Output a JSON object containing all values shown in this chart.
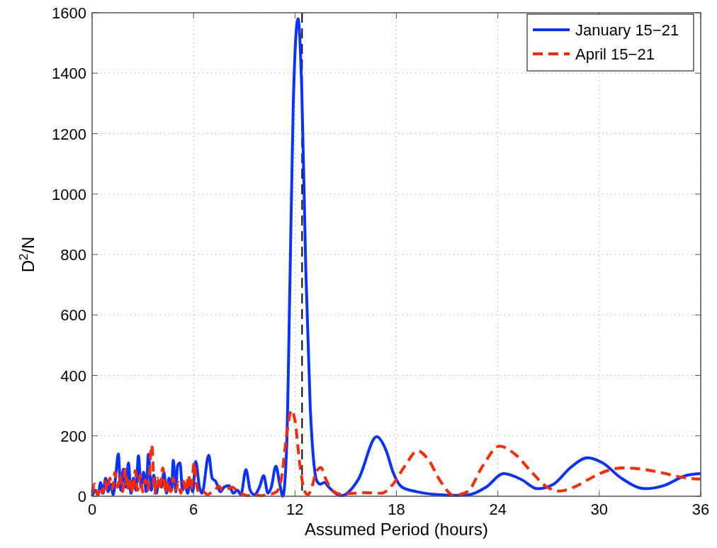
{
  "chart_data": {
    "type": "line",
    "xlabel": "Assumed Period (hours)",
    "ylabel": "D$^{2}$/N",
    "xlim": [
      0,
      36
    ],
    "xticks": [
      0,
      6,
      12,
      18,
      24,
      30,
      36
    ],
    "ylim": [
      0,
      1600
    ],
    "yticks": [
      0,
      200,
      400,
      600,
      800,
      1000,
      1200,
      1400,
      1600
    ],
    "grid": true,
    "legend": "top right",
    "ref_lines": [
      {
        "axis": "x",
        "value": 12.42,
        "color": "#000000",
        "line_style": "dashed"
      }
    ],
    "series": [
      {
        "name": "January 15−21",
        "color": "#0a32ff",
        "line_style": "solid",
        "x": [
          0,
          0.2,
          0.35,
          0.5,
          0.65,
          0.8,
          0.95,
          1.1,
          1.25,
          1.4,
          1.55,
          1.7,
          1.85,
          2.0,
          2.15,
          2.3,
          2.45,
          2.6,
          2.74,
          2.9,
          3.05,
          3.2,
          3.33,
          3.5,
          3.65,
          3.8,
          3.95,
          4.1,
          4.25,
          4.4,
          4.55,
          4.7,
          4.8,
          4.95,
          5.05,
          5.2,
          5.35,
          5.5,
          5.65,
          5.8,
          5.95,
          6.13,
          6.35,
          6.5,
          6.9,
          7.1,
          7.3,
          7.6,
          7.8,
          8.1,
          8.35,
          8.6,
          8.8,
          9.1,
          9.35,
          9.6,
          9.9,
          10.15,
          10.4,
          10.6,
          10.87,
          11.1,
          11.28,
          11.5,
          11.7,
          11.9,
          12.18,
          12.4,
          12.64,
          12.9,
          13.1,
          13.3,
          13.5,
          13.75,
          14.0,
          14.4,
          14.75,
          15.75,
          16.83,
          17.4,
          17.8,
          18.34,
          19.2,
          20.5,
          21.5,
          22.3,
          23.3,
          24.35,
          25.4,
          26.34,
          27.3,
          28.3,
          29.3,
          30.2,
          31.3,
          32.7,
          33.8,
          35.1,
          36
        ],
        "values": [
          0,
          20,
          5,
          45,
          10,
          60,
          15,
          40,
          5,
          70,
          140,
          20,
          90,
          30,
          110,
          10,
          60,
          20,
          134,
          30,
          80,
          15,
          139,
          20,
          70,
          10,
          50,
          30,
          80,
          10,
          60,
          20,
          119,
          15,
          100,
          110,
          20,
          40,
          10,
          50,
          15,
          115,
          30,
          10,
          136,
          60,
          50,
          15,
          30,
          35,
          10,
          20,
          5,
          88,
          20,
          5,
          30,
          68,
          10,
          30,
          100,
          40,
          0,
          150,
          700,
          1300,
          1580,
          1350,
          750,
          300,
          120,
          50,
          40,
          46,
          30,
          10,
          2,
          56,
          197,
          150,
          80,
          30,
          15,
          5,
          3,
          5,
          30,
          75,
          55,
          25,
          40,
          95,
          127,
          110,
          60,
          25,
          35,
          68,
          75
        ]
      },
      {
        "name": "April 15−21",
        "color": "#ff2800",
        "line_style": "dashed",
        "x": [
          0,
          0.15,
          0.3,
          0.45,
          0.6,
          0.75,
          0.9,
          1.05,
          1.2,
          1.35,
          1.5,
          1.65,
          1.8,
          1.95,
          2.1,
          2.25,
          2.4,
          2.55,
          2.7,
          2.85,
          3.0,
          3.15,
          3.3,
          3.53,
          3.7,
          3.85,
          4.0,
          4.18,
          4.35,
          4.5,
          4.65,
          4.8,
          4.95,
          5.1,
          5.25,
          5.4,
          5.55,
          5.7,
          5.85,
          6.04,
          6.2,
          6.4,
          6.6,
          6.8,
          7.0,
          7.2,
          7.5,
          7.7,
          8.0,
          8.3,
          8.6,
          9.0,
          9.2,
          9.6,
          10.0,
          10.4,
          10.9,
          11.2,
          11.5,
          11.8,
          12.0,
          12.3,
          12.55,
          12.76,
          13.0,
          13.25,
          13.54,
          13.8,
          14.2,
          14.75,
          15.5,
          16.2,
          17.1,
          17.8,
          18.5,
          19.25,
          19.9,
          20.6,
          21.4,
          22.2,
          23.1,
          24.1,
          25.0,
          26.0,
          26.8,
          27.6,
          28.5,
          29.5,
          30.5,
          31.4,
          32.5,
          33.5,
          35.1,
          36
        ],
        "values": [
          10,
          40,
          5,
          30,
          10,
          50,
          20,
          60,
          25,
          80,
          30,
          70,
          15,
          90,
          20,
          60,
          10,
          85,
          20,
          70,
          15,
          55,
          20,
          169,
          10,
          60,
          20,
          94,
          10,
          50,
          15,
          60,
          20,
          45,
          10,
          50,
          15,
          70,
          20,
          113,
          30,
          10,
          15,
          5,
          10,
          15,
          34,
          20,
          24,
          30,
          15,
          5,
          2,
          5,
          2,
          5,
          14,
          60,
          200,
          285,
          250,
          100,
          20,
          5,
          30,
          80,
          95,
          60,
          20,
          7,
          10,
          12,
          10,
          40,
          100,
          150,
          120,
          50,
          3,
          15,
          100,
          166,
          140,
          80,
          35,
          17,
          30,
          60,
          85,
          94,
          90,
          80,
          61,
          57
        ]
      }
    ]
  }
}
